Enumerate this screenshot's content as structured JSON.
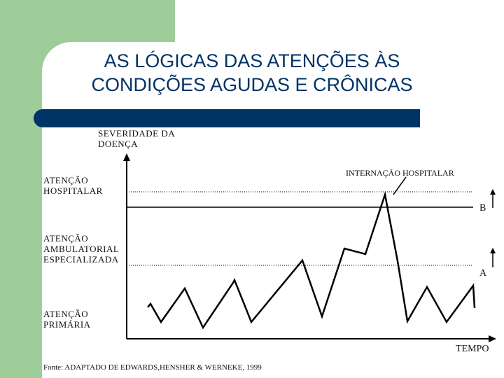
{
  "slide": {
    "title_line1": "AS LÓGICAS DAS ATENÇÕES ÀS",
    "title_line2": "CONDIÇÕES AGUDAS E CRÔNICAS"
  },
  "diagram": {
    "y_axis_label_line1": "SEVERIDADE DA",
    "y_axis_label_line2": "DOENÇA",
    "x_axis_label": "TEMPO",
    "levels": {
      "hospital_line1": "ATENÇÃO",
      "hospital_line2": "HOSPITALAR",
      "ambulatory_line1": "ATENÇÃO",
      "ambulatory_line2": "AMBULATORIAL",
      "ambulatory_line3": "ESPECIALIZADA",
      "primary_line1": "ATENÇÃO",
      "primary_line2": "PRIMÁRIA"
    },
    "annotation": "INTERNAÇÃO HOSPITALAR",
    "marker_b": "B",
    "marker_a": "A",
    "source": "Fonte: ADAPTADO DE  EDWARDS,HENSHER & WERNEKE, 1999"
  },
  "colors": {
    "side_band": "#9fcd99",
    "title_text": "#003366",
    "title_bar": "#003366",
    "lines": "#000000"
  }
}
